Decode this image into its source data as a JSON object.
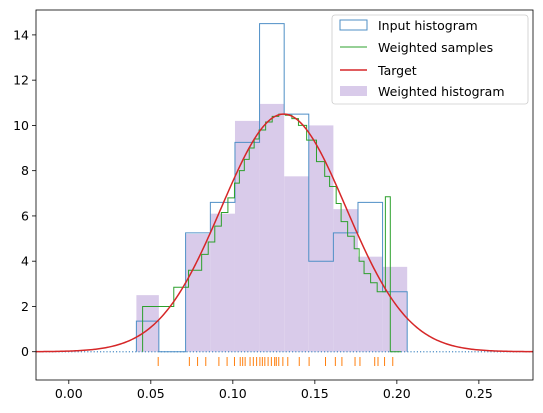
{
  "chart_data": {
    "type": "histogram",
    "xlim": [
      -0.02,
      0.283
    ],
    "ylim": [
      -1.25,
      15.1
    ],
    "x_ticks": [
      0.0,
      0.05,
      0.1,
      0.15,
      0.2,
      0.25
    ],
    "x_tick_labels": [
      "0.00",
      "0.05",
      "0.10",
      "0.15",
      "0.20",
      "0.25"
    ],
    "y_ticks": [
      0,
      2,
      4,
      6,
      8,
      10,
      12,
      14
    ],
    "y_tick_labels": [
      "0",
      "2",
      "4",
      "6",
      "8",
      "10",
      "12",
      "14"
    ],
    "grid": false,
    "legend_position": "top-right",
    "colors": {
      "input_histogram": "#4f8fc6",
      "weighted_samples": "#2ca02c",
      "target": "#d62728",
      "weighted_histogram": "#d9cbea",
      "rug": "#ff7f0e",
      "baseline": "#4f8fc6"
    },
    "series": [
      {
        "name": "Input histogram",
        "kind": "step",
        "bin_edges": [
          0.0412,
          0.0549,
          0.0712,
          0.0863,
          0.1013,
          0.1163,
          0.1313,
          0.1463,
          0.1613,
          0.1763,
          0.1913,
          0.2063
        ],
        "values": [
          1.35,
          0.0,
          5.25,
          6.6,
          9.25,
          14.5,
          10.5,
          4.0,
          5.25,
          6.6,
          2.65
        ]
      },
      {
        "name": "Weighted samples",
        "kind": "step",
        "x": [
          0.045,
          0.064,
          0.073,
          0.081,
          0.085,
          0.089,
          0.093,
          0.097,
          0.101,
          0.104,
          0.107,
          0.11,
          0.113,
          0.116,
          0.12,
          0.124,
          0.128,
          0.132,
          0.136,
          0.14,
          0.145,
          0.151,
          0.156,
          0.159,
          0.163,
          0.166,
          0.17,
          0.174,
          0.177,
          0.18,
          0.184,
          0.188,
          0.193,
          0.196,
          0.2025
        ],
        "values": [
          2.0,
          2.85,
          3.6,
          4.3,
          4.85,
          5.55,
          6.15,
          6.8,
          7.45,
          8.0,
          8.5,
          9.0,
          9.4,
          9.8,
          10.15,
          10.4,
          10.5,
          10.45,
          10.3,
          10.0,
          9.35,
          8.4,
          7.75,
          7.3,
          6.55,
          5.75,
          5.1,
          4.55,
          4.0,
          3.45,
          3.05,
          2.65,
          6.85,
          0.0,
          0.0
        ]
      },
      {
        "name": "Target",
        "kind": "gaussian",
        "mean": 0.131,
        "std": 0.038,
        "peak": 10.5
      },
      {
        "name": "Weighted histogram",
        "kind": "filled_bars",
        "bin_edges": [
          0.0412,
          0.0549,
          0.0712,
          0.0863,
          0.1013,
          0.1163,
          0.1313,
          0.1463,
          0.1613,
          0.1763,
          0.1913,
          0.2063
        ],
        "values": [
          2.5,
          0.0,
          5.2,
          6.1,
          10.2,
          10.95,
          7.75,
          10.0,
          6.3,
          4.2,
          3.75
        ]
      }
    ],
    "rug_x": [
      0.0545,
      0.0735,
      0.0785,
      0.0835,
      0.0915,
      0.0965,
      0.101,
      0.1045,
      0.106,
      0.1075,
      0.1105,
      0.1125,
      0.1145,
      0.1165,
      0.118,
      0.1195,
      0.1215,
      0.1235,
      0.1255,
      0.1265,
      0.128,
      0.1305,
      0.1335,
      0.1405,
      0.1465,
      0.1565,
      0.1625,
      0.1665,
      0.1745,
      0.1775,
      0.1865,
      0.1885,
      0.1925,
      0.1975
    ]
  }
}
